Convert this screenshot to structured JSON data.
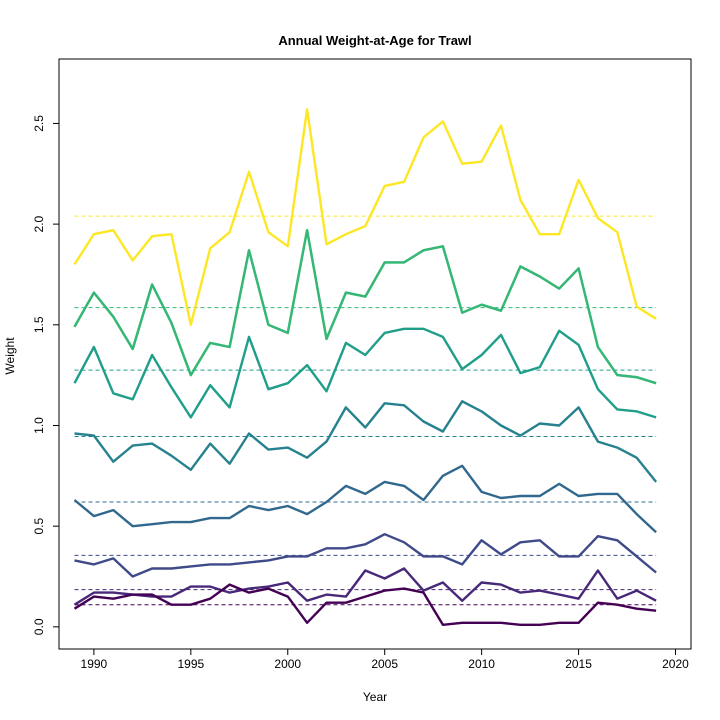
{
  "chart_data": {
    "type": "line",
    "title": "Annual Weight-at-Age for Trawl",
    "xlabel": "Year",
    "ylabel": "Weight",
    "xlim": [
      1988.2,
      2020.8
    ],
    "ylim": [
      -0.11,
      2.82
    ],
    "x_ticks": [
      1990,
      1995,
      2000,
      2005,
      2010,
      2015,
      2020
    ],
    "y_ticks": [
      0.0,
      0.5,
      1.0,
      1.5,
      2.0,
      2.5
    ],
    "y_tick_labels": [
      "0.0",
      "0.5",
      "1.0",
      "1.5",
      "2.0",
      "2.5"
    ],
    "grid": false,
    "legend": "none",
    "x": [
      1989,
      1990,
      1991,
      1992,
      1993,
      1994,
      1995,
      1996,
      1997,
      1998,
      1999,
      2000,
      2001,
      2002,
      2003,
      2004,
      2005,
      2006,
      2007,
      2008,
      2009,
      2010,
      2011,
      2012,
      2013,
      2014,
      2015,
      2016,
      2017,
      2018,
      2019
    ],
    "series": [
      {
        "color": "#440154",
        "mean": 0.11,
        "values": [
          0.09,
          0.15,
          0.14,
          0.16,
          0.16,
          0.11,
          0.11,
          0.14,
          0.21,
          0.17,
          0.19,
          0.15,
          0.02,
          0.12,
          0.12,
          0.15,
          0.18,
          0.19,
          0.17,
          0.01,
          0.02,
          0.02,
          0.02,
          0.01,
          0.01,
          0.02,
          0.02,
          0.12,
          0.11,
          0.09,
          0.08
        ]
      },
      {
        "color": "#482878",
        "mean": 0.185,
        "values": [
          0.11,
          0.17,
          0.17,
          0.16,
          0.15,
          0.15,
          0.2,
          0.2,
          0.17,
          0.19,
          0.2,
          0.22,
          0.13,
          0.16,
          0.15,
          0.28,
          0.24,
          0.29,
          0.18,
          0.22,
          0.13,
          0.22,
          0.21,
          0.17,
          0.18,
          0.16,
          0.14,
          0.28,
          0.14,
          0.18,
          0.13
        ]
      },
      {
        "color": "#3E4A89",
        "mean": 0.355,
        "values": [
          0.33,
          0.31,
          0.34,
          0.25,
          0.29,
          0.29,
          0.3,
          0.31,
          0.31,
          0.32,
          0.33,
          0.35,
          0.35,
          0.39,
          0.39,
          0.41,
          0.46,
          0.42,
          0.35,
          0.35,
          0.31,
          0.43,
          0.36,
          0.42,
          0.43,
          0.35,
          0.35,
          0.45,
          0.43,
          0.35,
          0.27
        ]
      },
      {
        "color": "#31688E",
        "mean": 0.62,
        "values": [
          0.63,
          0.55,
          0.58,
          0.5,
          0.51,
          0.52,
          0.52,
          0.54,
          0.54,
          0.6,
          0.58,
          0.6,
          0.56,
          0.62,
          0.7,
          0.66,
          0.72,
          0.7,
          0.63,
          0.75,
          0.8,
          0.67,
          0.64,
          0.65,
          0.65,
          0.71,
          0.65,
          0.66,
          0.66,
          0.56,
          0.47
        ]
      },
      {
        "color": "#26828E",
        "mean": 0.945,
        "values": [
          0.96,
          0.95,
          0.82,
          0.9,
          0.91,
          0.85,
          0.78,
          0.91,
          0.81,
          0.96,
          0.88,
          0.89,
          0.84,
          0.92,
          1.09,
          0.99,
          1.11,
          1.1,
          1.02,
          0.97,
          1.12,
          1.07,
          1.0,
          0.95,
          1.01,
          1.0,
          1.09,
          0.92,
          0.89,
          0.84,
          0.72
        ]
      },
      {
        "color": "#1F9E89",
        "mean": 1.275,
        "values": [
          1.21,
          1.39,
          1.16,
          1.13,
          1.35,
          1.19,
          1.04,
          1.2,
          1.09,
          1.44,
          1.18,
          1.21,
          1.3,
          1.17,
          1.41,
          1.35,
          1.46,
          1.48,
          1.48,
          1.44,
          1.28,
          1.35,
          1.45,
          1.26,
          1.29,
          1.47,
          1.4,
          1.18,
          1.08,
          1.07,
          1.04
        ]
      },
      {
        "color": "#35B779",
        "mean": 1.585,
        "values": [
          1.49,
          1.66,
          1.54,
          1.38,
          1.7,
          1.51,
          1.25,
          1.41,
          1.39,
          1.87,
          1.5,
          1.46,
          1.97,
          1.43,
          1.66,
          1.64,
          1.81,
          1.81,
          1.87,
          1.89,
          1.56,
          1.6,
          1.57,
          1.79,
          1.74,
          1.68,
          1.78,
          1.39,
          1.25,
          1.24,
          1.21
        ]
      },
      {
        "color": "#6DCD59",
        "mean": 1.585,
        "values": [
          1.49,
          1.66,
          1.54,
          1.38,
          1.7,
          1.51,
          1.25,
          1.41,
          1.39,
          1.87,
          1.5,
          1.46,
          1.97,
          1.43,
          1.66,
          1.64,
          1.81,
          1.81,
          1.87,
          1.89,
          1.56,
          1.6,
          1.57,
          1.79,
          1.74,
          1.68,
          1.78,
          1.39,
          1.25,
          1.24,
          1.21
        ]
      },
      {
        "color": "#FDE725",
        "mean": 2.04,
        "values": [
          1.8,
          1.95,
          1.97,
          1.82,
          1.94,
          1.95,
          1.5,
          1.88,
          1.96,
          2.26,
          1.96,
          1.89,
          2.57,
          1.9,
          1.95,
          1.99,
          2.19,
          2.21,
          2.43,
          2.51,
          2.3,
          2.31,
          2.49,
          2.12,
          1.95,
          1.95,
          2.22,
          2.03,
          1.96,
          1.59,
          1.53
        ]
      }
    ]
  },
  "colors": {
    "background": "#ffffff",
    "axis": "#000000"
  }
}
